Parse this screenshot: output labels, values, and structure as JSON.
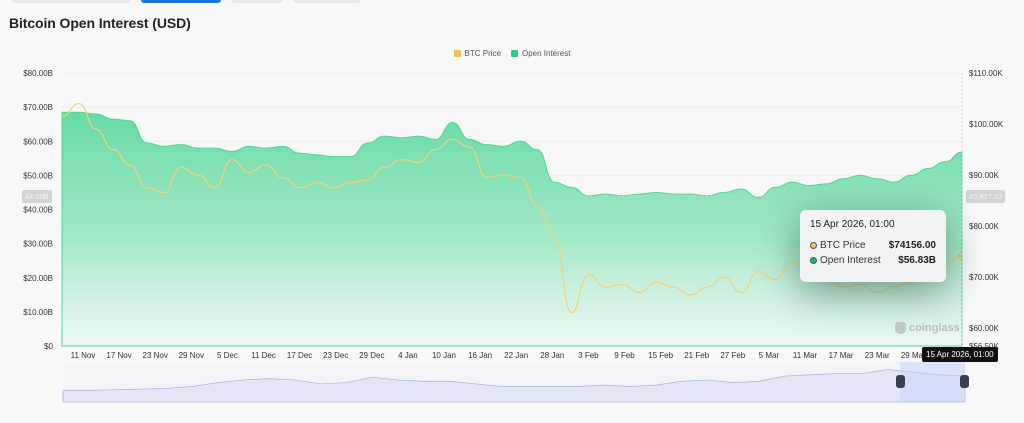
{
  "page": {
    "title": "Bitcoin Open Interest (USD)"
  },
  "legend": {
    "items": [
      {
        "label": "BTC Price",
        "color": "#f0c14b"
      },
      {
        "label": "Open Interest",
        "color": "#2ecc8a"
      }
    ]
  },
  "tooltip": {
    "date": "15 Apr 2026, 01:00",
    "rows": [
      {
        "label": "BTC Price",
        "value": "$74156.00",
        "color": "#f0c14b"
      },
      {
        "label": "Open Interest",
        "value": "$56.83B",
        "color": "#16b57a"
      }
    ]
  },
  "crosshair": {
    "left_flag": "44.00B",
    "right_flag": "85,927.52",
    "date_flag": "15 Apr 2026, 01:00"
  },
  "watermark": "coinglass",
  "chart_data": {
    "type": "area",
    "title": "Bitcoin Open Interest (USD)",
    "xlabel": "",
    "ylabel_left": "Open Interest (USD)",
    "ylabel_right": "BTC Price (USD)",
    "left_axis_ticks": [
      "$80.00B",
      "$70.00B",
      "$60.00B",
      "$50.00B",
      "$40.00B",
      "$30.00B",
      "$20.00B",
      "$10.00B",
      "$0"
    ],
    "right_axis_ticks": [
      "$110.00K",
      "$100.00K",
      "$90.00K",
      "$80.00K",
      "$70.00K",
      "$60.00K",
      "$56.50K"
    ],
    "ylim_left": [
      0,
      80
    ],
    "ylim_right": [
      56.5,
      110
    ],
    "x_ticks": [
      "11 Nov",
      "17 Nov",
      "23 Nov",
      "29 Nov",
      "5 Dec",
      "11 Dec",
      "17 Dec",
      "23 Dec",
      "29 Dec",
      "4 Jan",
      "10 Jan",
      "16 Jan",
      "22 Jan",
      "28 Jan",
      "3 Feb",
      "9 Feb",
      "15 Feb",
      "21 Feb",
      "27 Feb",
      "5 Mar",
      "11 Mar",
      "17 Mar",
      "23 Mar",
      "29 Mar",
      "4 Apr"
    ],
    "legend_position": "top-center",
    "grid": true,
    "series": [
      {
        "name": "Open Interest",
        "unit": "B USD",
        "axis": "left",
        "color": "#2ecc8a",
        "x": [
          "8 Nov",
          "11 Nov",
          "14 Nov",
          "17 Nov",
          "20 Nov",
          "23 Nov",
          "26 Nov",
          "29 Nov",
          "2 Dec",
          "5 Dec",
          "8 Dec",
          "11 Dec",
          "14 Dec",
          "17 Dec",
          "20 Dec",
          "23 Dec",
          "26 Dec",
          "29 Dec",
          "1 Jan",
          "4 Jan",
          "7 Jan",
          "10 Jan",
          "13 Jan",
          "16 Jan",
          "19 Jan",
          "22 Jan",
          "25 Jan",
          "28 Jan",
          "31 Jan",
          "3 Feb",
          "6 Feb",
          "9 Feb",
          "12 Feb",
          "15 Feb",
          "18 Feb",
          "21 Feb",
          "24 Feb",
          "27 Feb",
          "2 Mar",
          "5 Mar",
          "8 Mar",
          "11 Mar",
          "14 Mar",
          "17 Mar",
          "20 Mar",
          "23 Mar",
          "26 Mar",
          "29 Mar",
          "1 Apr",
          "4 Apr",
          "7 Apr",
          "10 Apr",
          "13 Apr",
          "15 Apr"
        ],
        "values": [
          68.5,
          68.5,
          68,
          66.5,
          66,
          59.5,
          58.5,
          59,
          58,
          58,
          57,
          58.5,
          58,
          58.5,
          56.5,
          56,
          55.5,
          55.5,
          59.5,
          61.5,
          61,
          61.5,
          60.5,
          65.5,
          60.5,
          59,
          58.5,
          60,
          57.5,
          48,
          46.5,
          44,
          44.5,
          44,
          44.5,
          45,
          44.5,
          44.5,
          44,
          45,
          46,
          43.5,
          46.5,
          48,
          47,
          47.5,
          49,
          50,
          49,
          48,
          50,
          52,
          54,
          56.8
        ]
      },
      {
        "name": "BTC Price",
        "unit": "K USD",
        "axis": "right",
        "color": "#f0c14b",
        "x": [
          "8 Nov",
          "11 Nov",
          "14 Nov",
          "17 Nov",
          "20 Nov",
          "23 Nov",
          "26 Nov",
          "29 Nov",
          "2 Dec",
          "5 Dec",
          "8 Dec",
          "11 Dec",
          "14 Dec",
          "17 Dec",
          "20 Dec",
          "23 Dec",
          "26 Dec",
          "29 Dec",
          "1 Jan",
          "4 Jan",
          "7 Jan",
          "10 Jan",
          "13 Jan",
          "16 Jan",
          "19 Jan",
          "22 Jan",
          "25 Jan",
          "28 Jan",
          "31 Jan",
          "3 Feb",
          "6 Feb",
          "9 Feb",
          "12 Feb",
          "15 Feb",
          "18 Feb",
          "21 Feb",
          "24 Feb",
          "27 Feb",
          "2 Mar",
          "5 Mar",
          "8 Mar",
          "11 Mar",
          "14 Mar",
          "17 Mar",
          "20 Mar",
          "23 Mar",
          "26 Mar",
          "29 Mar",
          "1 Apr",
          "4 Apr",
          "7 Apr",
          "10 Apr",
          "13 Apr",
          "15 Apr"
        ],
        "values": [
          101.5,
          104,
          99,
          95,
          92,
          87.5,
          86.5,
          91.5,
          90,
          87.5,
          93,
          90.5,
          92,
          89.5,
          87.5,
          88.5,
          87.5,
          88.5,
          89,
          91.5,
          93,
          92.5,
          95,
          97,
          95.5,
          89.5,
          90,
          89.5,
          84,
          78,
          63,
          70.5,
          68,
          68.5,
          67,
          69,
          68,
          66.5,
          68,
          70,
          67,
          71,
          69.5,
          73,
          71,
          70.5,
          68,
          68.5,
          67,
          68,
          69,
          70,
          72.5,
          74.2
        ]
      }
    ],
    "crosshair": {
      "date": "15 Apr 2026, 01:00",
      "btc_price": 74156.0,
      "open_interest_billion": 56.83,
      "left_axis_marker": "44.00B",
      "right_axis_marker": "85,927.52"
    },
    "navigator": {
      "type": "area",
      "selected_range": [
        "~7 Apr",
        "15 Apr"
      ],
      "values": [
        2,
        2,
        2.5,
        3,
        3.5,
        5,
        8,
        10,
        11,
        10,
        7,
        8,
        12,
        10,
        9,
        9,
        7,
        5,
        5,
        5,
        5,
        6,
        5,
        6,
        9,
        10,
        8,
        9,
        13,
        14,
        15,
        15,
        18,
        16,
        14,
        13
      ]
    }
  }
}
